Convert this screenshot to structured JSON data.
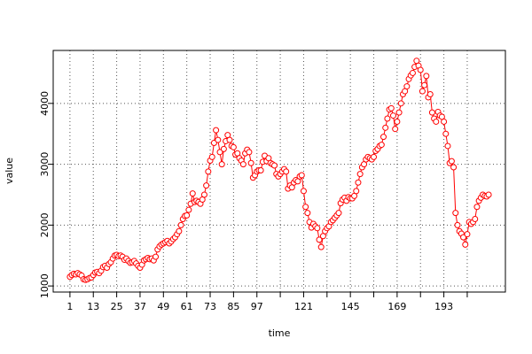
{
  "chart_data": {
    "type": "line",
    "xlabel": "time",
    "ylabel": "value",
    "x": [
      1,
      2,
      3,
      4,
      5,
      6,
      7,
      8,
      9,
      10,
      11,
      12,
      13,
      14,
      15,
      16,
      17,
      18,
      19,
      20,
      21,
      22,
      23,
      24,
      25,
      26,
      27,
      28,
      29,
      30,
      31,
      32,
      33,
      34,
      35,
      36,
      37,
      38,
      39,
      40,
      41,
      42,
      43,
      44,
      45,
      46,
      47,
      48,
      49,
      50,
      51,
      52,
      53,
      54,
      55,
      56,
      57,
      58,
      59,
      60,
      61,
      62,
      63,
      64,
      65,
      66,
      67,
      68,
      69,
      70,
      71,
      72,
      73,
      74,
      75,
      76,
      77,
      78,
      79,
      80,
      81,
      82,
      83,
      84,
      85,
      86,
      87,
      88,
      89,
      90,
      91,
      92,
      93,
      94,
      95,
      96,
      97,
      98,
      99,
      100,
      101,
      102,
      103,
      104,
      105,
      106,
      107,
      108,
      109,
      110,
      111,
      112,
      113,
      114,
      115,
      116,
      117,
      118,
      119,
      120,
      121,
      122,
      123,
      124,
      125,
      126,
      127,
      128,
      129,
      130,
      131,
      132,
      133,
      134,
      135,
      136,
      137,
      138,
      139,
      140,
      141,
      142,
      143,
      144,
      145,
      146,
      147,
      148,
      149,
      150,
      151,
      152,
      153,
      154,
      155,
      156,
      157,
      158,
      159,
      160,
      161,
      162,
      163,
      164,
      165,
      166,
      167,
      168,
      169,
      170,
      171,
      172,
      173,
      174,
      175,
      176,
      177,
      178,
      179,
      180,
      181,
      182,
      183,
      184,
      185,
      186,
      187,
      188,
      189,
      190,
      191,
      192,
      193,
      194,
      195,
      196,
      197,
      198,
      199,
      200,
      201,
      202,
      203,
      204,
      205,
      206,
      207,
      208,
      209,
      210,
      211,
      212,
      213,
      214,
      215,
      216
    ],
    "series": [
      {
        "color": "#ff0000",
        "values": [
          1150,
          1180,
          1200,
          1190,
          1210,
          1190,
          1170,
          1110,
          1100,
          1110,
          1130,
          1140,
          1180,
          1220,
          1230,
          1210,
          1250,
          1310,
          1330,
          1300,
          1360,
          1390,
          1450,
          1500,
          1510,
          1490,
          1500,
          1480,
          1430,
          1450,
          1410,
          1380,
          1390,
          1410,
          1370,
          1330,
          1300,
          1350,
          1420,
          1440,
          1460,
          1440,
          1450,
          1420,
          1480,
          1600,
          1650,
          1680,
          1700,
          1720,
          1740,
          1700,
          1730,
          1770,
          1800,
          1850,
          1900,
          2000,
          2100,
          2150,
          2160,
          2250,
          2350,
          2520,
          2380,
          2400,
          2380,
          2350,
          2420,
          2500,
          2650,
          2880,
          3060,
          3120,
          3350,
          3560,
          3400,
          3200,
          3000,
          3250,
          3380,
          3480,
          3400,
          3300,
          3280,
          3160,
          3180,
          3100,
          3060,
          3000,
          3180,
          3240,
          3200,
          3020,
          2780,
          2820,
          2880,
          2900,
          2900,
          3040,
          3140,
          3050,
          3100,
          3020,
          3000,
          2980,
          2840,
          2800,
          2840,
          2880,
          2920,
          2880,
          2600,
          2650,
          2620,
          2700,
          2740,
          2720,
          2800,
          2820,
          2560,
          2300,
          2200,
          2050,
          1960,
          2020,
          1980,
          1950,
          1760,
          1640,
          1820,
          1900,
          1950,
          1980,
          2050,
          2080,
          2120,
          2160,
          2200,
          2360,
          2420,
          2450,
          2400,
          2460,
          2440,
          2440,
          2480,
          2560,
          2700,
          2840,
          2950,
          3000,
          3080,
          3120,
          3100,
          3080,
          3120,
          3220,
          3250,
          3300,
          3320,
          3450,
          3600,
          3750,
          3900,
          3920,
          3800,
          3580,
          3700,
          3850,
          4000,
          4150,
          4200,
          4280,
          4400,
          4460,
          4500,
          4600,
          4700,
          4620,
          4550,
          4200,
          4300,
          4450,
          4100,
          4150,
          3850,
          3750,
          3700,
          3860,
          3800,
          3780,
          3700,
          3500,
          3300,
          3020,
          3050,
          2950,
          2200,
          2000,
          1900,
          1860,
          1800,
          1680,
          1850,
          2050,
          2020,
          2050,
          2100,
          2300,
          2400,
          2450,
          2500,
          2480,
          2470,
          2500
        ]
      }
    ],
    "xlim": [
      -7.6,
      224.6
    ],
    "ylim": [
      900,
      4870
    ],
    "xticks": [
      1,
      13,
      25,
      37,
      49,
      61,
      73,
      85,
      97,
      {
        "value": 109,
        "label": null
      },
      121,
      {
        "value": 133,
        "label": null
      },
      145,
      {
        "value": 157,
        "label": null
      },
      169,
      {
        "value": 181,
        "label": null
      },
      193,
      {
        "value": 205,
        "label": null
      }
    ],
    "yticks": [
      1000,
      2000,
      3000,
      4000
    ],
    "grid": true
  }
}
